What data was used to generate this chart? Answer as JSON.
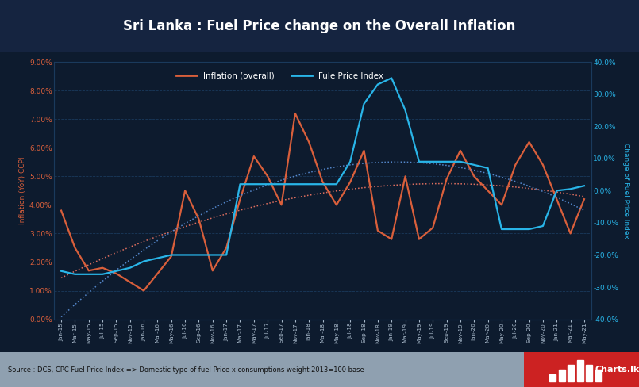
{
  "title": "Sri Lanka : Fuel Price change on the Overall Inflation",
  "background_color": "#0d1b2e",
  "plot_bg_color": "#0d1b2e",
  "title_bg_color": "#152440",
  "grid_color": "#1a3a5c",
  "source_text": "Source : DCS, CPC Fuel Price Index => Domestic type of fuel Price x consumptions weight 2013=100 base",
  "x_labels": [
    "Jan-15",
    "Mar-15",
    "May-15",
    "Jul-15",
    "Sep-15",
    "Nov-15",
    "Jan-16",
    "Mar-16",
    "May-16",
    "Jul-16",
    "Sep-16",
    "Nov-16",
    "Jan-17",
    "Mar-17",
    "May-17",
    "Jul-17",
    "Sep-17",
    "Nov-17",
    "Jan-18",
    "Mar-18",
    "May-18",
    "Jul-18",
    "Sep-18",
    "Nov-18",
    "Jan-19",
    "Mar-19",
    "May-19",
    "Jul-19",
    "Sep-19",
    "Nov-19",
    "Jan-20",
    "Mar-20",
    "May-20",
    "Jul-20",
    "Sep-20",
    "Nov-20",
    "Jan-21",
    "Mar-21",
    "May-21"
  ],
  "inflation": [
    3.8,
    2.5,
    1.7,
    1.8,
    1.6,
    1.3,
    1.0,
    1.6,
    2.2,
    4.5,
    3.5,
    1.7,
    2.5,
    4.2,
    5.7,
    5.0,
    4.0,
    7.2,
    6.2,
    4.8,
    4.0,
    4.8,
    5.9,
    3.1,
    2.8,
    5.0,
    2.8,
    3.2,
    4.9,
    5.9,
    5.0,
    4.5,
    4.0,
    5.4,
    6.2,
    5.4,
    4.2,
    3.0,
    4.2
  ],
  "fuel_price_index": [
    -25.0,
    -26.0,
    -26.0,
    -26.0,
    -25.0,
    -24.0,
    -22.0,
    -21.0,
    -20.0,
    -20.0,
    -20.0,
    -20.0,
    -20.0,
    2.0,
    2.0,
    2.0,
    2.0,
    2.0,
    2.0,
    2.0,
    2.0,
    9.0,
    27.0,
    33.0,
    35.0,
    25.0,
    9.0,
    9.0,
    9.0,
    9.0,
    8.0,
    7.0,
    -12.0,
    -12.0,
    -12.0,
    -11.0,
    0.0,
    0.5,
    1.5
  ],
  "inflation_color": "#d95f3b",
  "fuel_color": "#29b5e8",
  "trend_color_red": "#e07060",
  "trend_color_blue": "#5588cc",
  "ylabel_left": "Inflation (YoY) CCPI",
  "ylabel_right": "Change of Fuel Price Index",
  "ylim_left": [
    0.0,
    9.0
  ],
  "ylim_right": [
    -40.0,
    40.0
  ],
  "yticks_left": [
    0.0,
    1.0,
    2.0,
    3.0,
    4.0,
    5.0,
    6.0,
    7.0,
    8.0,
    9.0
  ],
  "yticks_right": [
    -40.0,
    -30.0,
    -20.0,
    -10.0,
    0.0,
    10.0,
    20.0,
    30.0,
    40.0
  ]
}
